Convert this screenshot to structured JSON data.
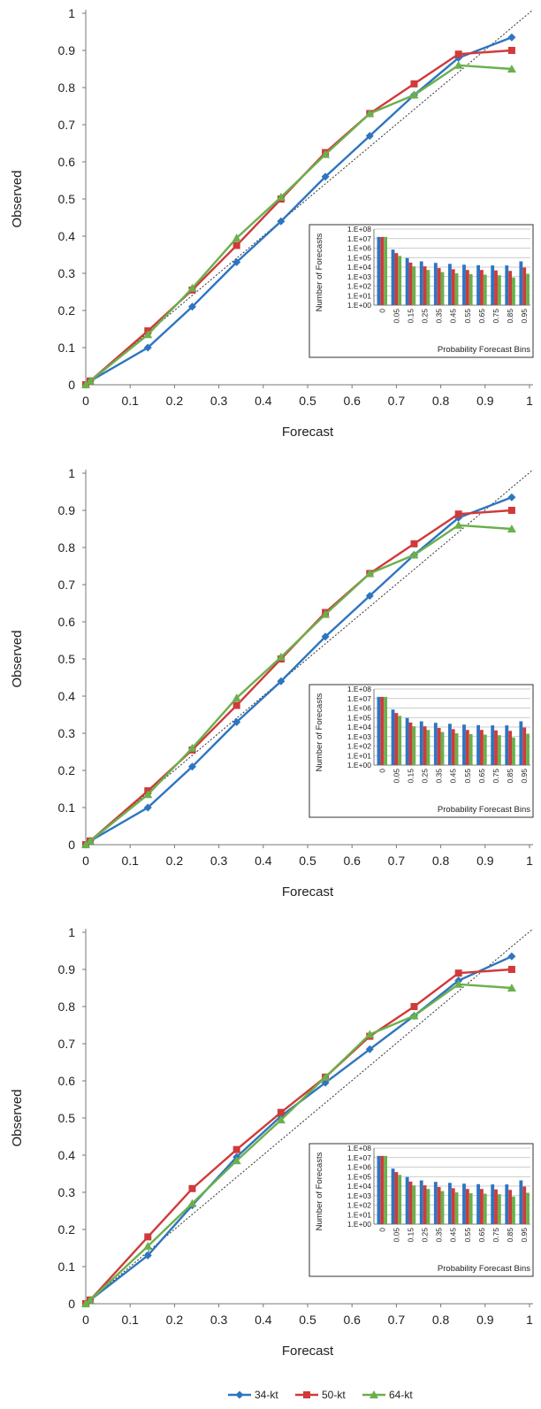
{
  "chart_data": [
    {
      "type": "line",
      "xlabel": "Forecast",
      "ylabel": "Observed",
      "xlim": [
        0,
        1
      ],
      "ylim": [
        0,
        1
      ],
      "x_ticks": [
        "0",
        "0.1",
        "0.2",
        "0.3",
        "0.4",
        "0.5",
        "0.6",
        "0.7",
        "0.8",
        "0.9",
        "1"
      ],
      "y_ticks": [
        "0",
        "0.1",
        "0.2",
        "0.3",
        "0.4",
        "0.5",
        "0.6",
        "0.7",
        "0.8",
        "0.9",
        "1"
      ],
      "x": [
        0,
        0.01,
        0.14,
        0.24,
        0.34,
        0.44,
        0.54,
        0.64,
        0.74,
        0.84,
        0.96
      ],
      "series": [
        {
          "name": "34-kt",
          "color": "#2e75c0",
          "marker": "diamond",
          "values": [
            0,
            0.01,
            0.1,
            0.21,
            0.33,
            0.44,
            0.56,
            0.67,
            0.78,
            0.88,
            0.935
          ]
        },
        {
          "name": "50-kt",
          "color": "#d03a3a",
          "marker": "square",
          "values": [
            0,
            0.01,
            0.145,
            0.255,
            0.375,
            0.5,
            0.625,
            0.73,
            0.81,
            0.89,
            0.9
          ]
        },
        {
          "name": "64-kt",
          "color": "#6ab04c",
          "marker": "triangle",
          "values": [
            0,
            0.01,
            0.135,
            0.26,
            0.395,
            0.505,
            0.62,
            0.73,
            0.78,
            0.86,
            0.85
          ]
        }
      ],
      "reference_line": "diagonal dashed",
      "inset": {
        "type": "bar",
        "xlabel": "Probability Forecast Bins",
        "ylabel": "Number of Forecasts",
        "log_scale": true,
        "y_ticks": [
          "1.E+00",
          "1.E+01",
          "1.E+02",
          "1.E+03",
          "1.E+04",
          "1.E+05",
          "1.E+06",
          "1.E+07",
          "1.E+08"
        ],
        "categories": [
          "0",
          "0.05",
          "0.15",
          "0.25",
          "0.35",
          "0.45",
          "0.55",
          "0.65",
          "0.75",
          "0.85",
          "0.95"
        ],
        "series": [
          {
            "name": "34-kt",
            "values": [
              15000000,
              700000,
              90000,
              40000,
              28000,
              22000,
              18000,
              16000,
              15000,
              15000,
              40000
            ]
          },
          {
            "name": "50-kt",
            "values": [
              15000000,
              300000,
              30000,
              12000,
              8000,
              6000,
              5000,
              5000,
              4500,
              4000,
              9000
            ]
          },
          {
            "name": "64-kt",
            "values": [
              15000000,
              150000,
              12000,
              5000,
              3000,
              2200,
              1800,
              1600,
              1400,
              800,
              2000
            ]
          }
        ]
      }
    },
    {
      "type": "line",
      "xlabel": "Forecast",
      "ylabel": "Observed",
      "xlim": [
        0,
        1
      ],
      "ylim": [
        0,
        1
      ],
      "x_ticks": [
        "0",
        "0.1",
        "0.2",
        "0.3",
        "0.4",
        "0.5",
        "0.6",
        "0.7",
        "0.8",
        "0.9",
        "1"
      ],
      "y_ticks": [
        "0",
        "0.1",
        "0.2",
        "0.3",
        "0.4",
        "0.5",
        "0.6",
        "0.7",
        "0.8",
        "0.9",
        "1"
      ],
      "x": [
        0,
        0.01,
        0.14,
        0.24,
        0.34,
        0.44,
        0.54,
        0.64,
        0.74,
        0.84,
        0.96
      ],
      "series": [
        {
          "name": "34-kt",
          "color": "#2e75c0",
          "marker": "diamond",
          "values": [
            0,
            0.01,
            0.1,
            0.21,
            0.33,
            0.44,
            0.56,
            0.67,
            0.78,
            0.88,
            0.935
          ]
        },
        {
          "name": "50-kt",
          "color": "#d03a3a",
          "marker": "square",
          "values": [
            0,
            0.01,
            0.145,
            0.255,
            0.375,
            0.5,
            0.625,
            0.73,
            0.81,
            0.89,
            0.9
          ]
        },
        {
          "name": "64-kt",
          "color": "#6ab04c",
          "marker": "triangle",
          "values": [
            0,
            0.01,
            0.135,
            0.26,
            0.395,
            0.505,
            0.62,
            0.73,
            0.78,
            0.86,
            0.85
          ]
        }
      ],
      "reference_line": "diagonal dashed",
      "inset": {
        "type": "bar",
        "xlabel": "Probability Forecast Bins",
        "ylabel": "Number of Forecasts",
        "log_scale": true,
        "y_ticks": [
          "1.E+00",
          "1.E+01",
          "1.E+02",
          "1.E+03",
          "1.E+04",
          "1.E+05",
          "1.E+06",
          "1.E+07",
          "1.E+08"
        ],
        "categories": [
          "0",
          "0.05",
          "0.15",
          "0.25",
          "0.35",
          "0.45",
          "0.55",
          "0.65",
          "0.75",
          "0.85",
          "0.95"
        ],
        "series": [
          {
            "name": "34-kt",
            "values": [
              15000000,
              700000,
              90000,
              40000,
              28000,
              22000,
              18000,
              16000,
              15000,
              15000,
              40000
            ]
          },
          {
            "name": "50-kt",
            "values": [
              15000000,
              300000,
              30000,
              12000,
              8000,
              6000,
              5000,
              5000,
              4500,
              4000,
              9000
            ]
          },
          {
            "name": "64-kt",
            "values": [
              15000000,
              150000,
              12000,
              5000,
              3000,
              2200,
              1800,
              1600,
              1400,
              800,
              2000
            ]
          }
        ]
      }
    },
    {
      "type": "line",
      "xlabel": "Forecast",
      "ylabel": "Observed",
      "xlim": [
        0,
        1
      ],
      "ylim": [
        0,
        1
      ],
      "x_ticks": [
        "0",
        "0.1",
        "0.2",
        "0.3",
        "0.4",
        "0.5",
        "0.6",
        "0.7",
        "0.8",
        "0.9",
        "1"
      ],
      "y_ticks": [
        "0",
        "0.1",
        "0.2",
        "0.3",
        "0.4",
        "0.5",
        "0.6",
        "0.7",
        "0.8",
        "0.9",
        "1"
      ],
      "x": [
        0,
        0.01,
        0.14,
        0.24,
        0.34,
        0.44,
        0.54,
        0.64,
        0.74,
        0.84,
        0.96
      ],
      "series": [
        {
          "name": "34-kt",
          "color": "#2e75c0",
          "marker": "diamond",
          "values": [
            0,
            0.01,
            0.13,
            0.265,
            0.395,
            0.505,
            0.595,
            0.685,
            0.775,
            0.87,
            0.935
          ]
        },
        {
          "name": "50-kt",
          "color": "#d03a3a",
          "marker": "square",
          "values": [
            0,
            0.01,
            0.18,
            0.31,
            0.415,
            0.515,
            0.61,
            0.72,
            0.8,
            0.89,
            0.9
          ]
        },
        {
          "name": "64-kt",
          "color": "#6ab04c",
          "marker": "triangle",
          "values": [
            0,
            0.01,
            0.155,
            0.27,
            0.385,
            0.495,
            0.61,
            0.725,
            0.775,
            0.86,
            0.85
          ]
        }
      ],
      "reference_line": "diagonal dashed",
      "inset": {
        "type": "bar",
        "xlabel": "Probability Forecast Bins",
        "ylabel": "Number of Forecasts",
        "log_scale": true,
        "y_ticks": [
          "1.E+00",
          "1.E+01",
          "1.E+02",
          "1.E+03",
          "1.E+04",
          "1.E+05",
          "1.E+06",
          "1.E+07",
          "1.E+08"
        ],
        "categories": [
          "0",
          "0.05",
          "0.15",
          "0.25",
          "0.35",
          "0.45",
          "0.55",
          "0.65",
          "0.75",
          "0.85",
          "0.95"
        ],
        "series": [
          {
            "name": "34-kt",
            "values": [
              15000000,
              700000,
              90000,
              40000,
              28000,
              22000,
              18000,
              16000,
              15000,
              15000,
              40000
            ]
          },
          {
            "name": "50-kt",
            "values": [
              15000000,
              300000,
              30000,
              12000,
              8000,
              6000,
              5000,
              5000,
              4500,
              4000,
              9000
            ]
          },
          {
            "name": "64-kt",
            "values": [
              15000000,
              150000,
              12000,
              5000,
              3000,
              2200,
              1800,
              1600,
              1400,
              800,
              2000
            ]
          }
        ]
      }
    }
  ],
  "legend": {
    "entries": [
      {
        "label": "34-kt",
        "color": "#2e75c0",
        "marker": "diamond"
      },
      {
        "label": "50-kt",
        "color": "#d03a3a",
        "marker": "square"
      },
      {
        "label": "64-kt",
        "color": "#6ab04c",
        "marker": "triangle"
      }
    ]
  }
}
